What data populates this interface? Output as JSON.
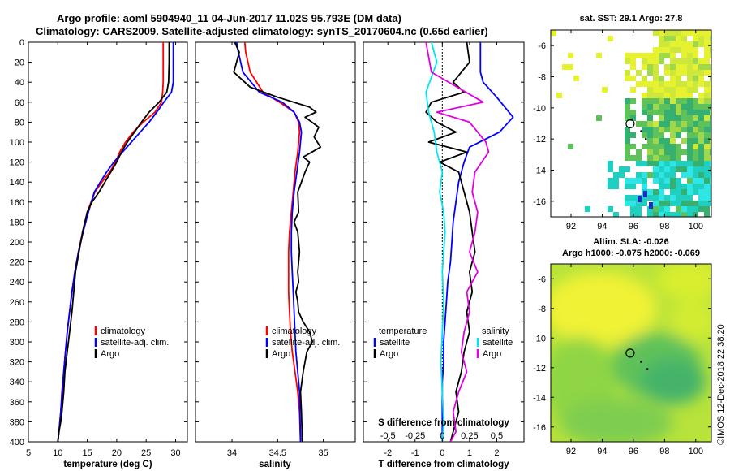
{
  "title": {
    "line1": "Argo profile: aoml 5904940_11 04-Jun-2017 11.02S 95.793E (DM data)",
    "line2": "Climatology: CARS2009. Satellite-adjusted climatology: synTS_20170604.nc (0.65d earlier)"
  },
  "colors": {
    "climatology": "#ff0000",
    "satellite": "#0000ff",
    "argo": "#000000",
    "sat_salinity": "#00e5ee",
    "argo_salinity": "#e000e0"
  },
  "depth_axis": {
    "min": 0,
    "max": 400,
    "ticks": [
      0,
      20,
      40,
      60,
      80,
      100,
      120,
      140,
      160,
      180,
      200,
      220,
      240,
      260,
      280,
      300,
      320,
      340,
      360,
      380,
      400
    ]
  },
  "chart_data": [
    {
      "id": "temperature",
      "type": "line",
      "xlabel": "temperature (deg C)",
      "xlim": [
        5,
        32
      ],
      "xticks": [
        5,
        10,
        15,
        20,
        25,
        30
      ],
      "ylim": [
        0,
        400
      ],
      "legend": {
        "position": "bottom-right",
        "items": [
          "climatology",
          "satellite-adj. clim.",
          "Argo"
        ]
      },
      "series": [
        {
          "name": "climatology",
          "color": "#ff0000",
          "x": [
            27.9,
            27.9,
            27.9,
            27.8,
            27.6,
            26.5,
            24.5,
            22.8,
            21.5,
            20.5,
            19.8,
            18.8,
            17.5,
            16.3,
            15.0,
            14.2,
            13.5,
            12.9,
            12.4,
            12.0,
            11.6,
            11.3,
            11.0,
            10.8,
            10.5,
            10.2,
            10.0
          ],
          "y": [
            0,
            20,
            40,
            50,
            60,
            70,
            80,
            90,
            100,
            110,
            120,
            130,
            140,
            150,
            170,
            190,
            210,
            230,
            250,
            270,
            290,
            310,
            330,
            350,
            370,
            390,
            400
          ]
        },
        {
          "name": "satellite-adj. clim.",
          "color": "#0000ff",
          "x": [
            29.6,
            29.6,
            29.6,
            29.3,
            28.0,
            26.8,
            25.5,
            24.0,
            22.5,
            21.0,
            19.5,
            18.3,
            17.2,
            16.2,
            15.2,
            14.3,
            13.5,
            12.9,
            12.4,
            12.0,
            11.6,
            11.3,
            11.0,
            10.7,
            10.5,
            10.2,
            10.0
          ],
          "y": [
            0,
            20,
            40,
            50,
            60,
            70,
            80,
            90,
            100,
            110,
            120,
            130,
            140,
            150,
            170,
            190,
            210,
            230,
            250,
            270,
            290,
            310,
            330,
            350,
            370,
            390,
            400
          ]
        },
        {
          "name": "Argo",
          "color": "#000000",
          "x": [
            28.9,
            28.9,
            28.8,
            28.5,
            27.2,
            25.5,
            24.2,
            23.0,
            21.8,
            20.8,
            20.0,
            19.0,
            18.0,
            17.0,
            15.8,
            15.0,
            14.2,
            13.6,
            13.0,
            12.7,
            12.4,
            12.0,
            11.6,
            11.2,
            11.0,
            10.7,
            10.5,
            10.2,
            10.0
          ],
          "y": [
            0,
            20,
            40,
            50,
            60,
            70,
            80,
            90,
            100,
            110,
            120,
            130,
            140,
            150,
            160,
            170,
            190,
            210,
            230,
            250,
            270,
            290,
            310,
            330,
            350,
            370,
            380,
            390,
            400
          ]
        }
      ]
    },
    {
      "id": "salinity",
      "type": "line",
      "xlabel": "salinity",
      "xlim": [
        33.6,
        35.35
      ],
      "xticks": [
        34,
        34.5,
        35
      ],
      "ylim": [
        0,
        400
      ],
      "legend": {
        "position": "bottom-right",
        "items": [
          "climatology",
          "satellite-adj. clim.",
          "Argo"
        ]
      },
      "series": [
        {
          "name": "climatology",
          "color": "#ff0000",
          "x": [
            34.14,
            34.15,
            34.2,
            34.34,
            34.52,
            34.68,
            34.73,
            34.74,
            34.72,
            34.69,
            34.67,
            34.65,
            34.63,
            34.62,
            34.62,
            34.62,
            34.63,
            34.64,
            34.66,
            34.69,
            34.72,
            34.74,
            34.75
          ],
          "y": [
            0,
            10,
            30,
            50,
            60,
            70,
            80,
            90,
            110,
            130,
            150,
            170,
            190,
            210,
            230,
            250,
            270,
            290,
            310,
            330,
            350,
            370,
            400
          ]
        },
        {
          "name": "satellite-adj. clim.",
          "color": "#0000ff",
          "x": [
            34.05,
            34.07,
            34.12,
            34.3,
            34.55,
            34.68,
            34.74,
            34.76,
            34.74,
            34.71,
            34.68,
            34.66,
            34.65,
            34.65,
            34.66,
            34.67,
            34.68,
            34.69,
            34.7,
            34.72,
            34.74,
            34.75
          ],
          "y": [
            0,
            10,
            30,
            50,
            60,
            70,
            80,
            90,
            110,
            130,
            150,
            170,
            190,
            210,
            230,
            250,
            270,
            290,
            310,
            330,
            350,
            400
          ]
        },
        {
          "name": "Argo",
          "color": "#000000",
          "x": [
            34.03,
            34.08,
            34.02,
            34.2,
            34.5,
            34.85,
            34.92,
            34.8,
            34.95,
            34.9,
            34.97,
            34.78,
            34.85,
            34.8,
            34.72,
            34.73,
            34.68,
            34.72,
            34.74,
            34.72,
            34.73,
            34.7,
            34.72,
            34.73,
            34.78,
            34.85,
            34.88,
            34.82,
            34.78,
            34.75,
            34.76,
            34.77
          ],
          "y": [
            0,
            10,
            30,
            45,
            55,
            65,
            70,
            75,
            85,
            95,
            105,
            115,
            120,
            130,
            150,
            170,
            180,
            190,
            210,
            230,
            240,
            250,
            260,
            270,
            280,
            290,
            300,
            310,
            330,
            350,
            370,
            400
          ]
        }
      ]
    },
    {
      "id": "difference",
      "type": "line",
      "xlabel": "T difference from climatology",
      "top_axis_label": "S difference from climatology",
      "xlim": [
        -2.9,
        3.0
      ],
      "xticks": [
        -2,
        -1,
        0,
        1,
        2
      ],
      "top_axis_ticks": [
        "-0.5",
        "-0.25",
        "0",
        "0.25",
        "0.5"
      ],
      "top_axis_scale": 4,
      "ylim": [
        0,
        400
      ],
      "legend": {
        "position": "bottom",
        "left_title": "temperature",
        "right_title": "salinity",
        "left_items": [
          "satellite",
          "Argo"
        ],
        "right_items": [
          "satellite",
          "Argo"
        ]
      },
      "series": [
        {
          "name": "temperature satellite",
          "color": "#0000ff",
          "x": [
            1.4,
            1.4,
            1.5,
            2.0,
            2.6,
            2.1,
            1.0,
            0.8,
            0.6,
            0.5,
            0.4,
            0.35,
            0.3,
            0.2,
            0.15,
            0.1,
            0.05,
            0.05,
            0.0,
            0.0,
            0.0
          ],
          "y": [
            0,
            30,
            40,
            55,
            75,
            90,
            105,
            120,
            140,
            160,
            180,
            200,
            220,
            240,
            260,
            280,
            300,
            320,
            340,
            360,
            400
          ]
        },
        {
          "name": "temperature Argo",
          "color": "#000000",
          "x": [
            0.9,
            1.0,
            0.4,
            0.8,
            -0.4,
            -0.6,
            -0.2,
            0.5,
            -0.5,
            0.9,
            -0.1,
            0.6,
            0.8,
            1.0,
            1.1,
            1.2,
            1.0,
            1.1,
            0.9,
            1.0,
            0.8,
            0.7,
            0.5,
            0.6,
            0.4,
            0.3
          ],
          "y": [
            0,
            20,
            40,
            50,
            60,
            70,
            80,
            90,
            100,
            110,
            120,
            130,
            150,
            170,
            190,
            210,
            230,
            250,
            270,
            290,
            310,
            330,
            350,
            370,
            390,
            400
          ]
        },
        {
          "name": "salinity satellite",
          "color": "#00e5ee",
          "x": [
            -0.4,
            -0.2,
            -0.6,
            -0.5,
            -0.3,
            -0.2,
            0.0,
            -0.1,
            0.05,
            0.1,
            0.05,
            0.0,
            0.05,
            0.0,
            -0.05,
            0.0,
            0.05,
            0.0
          ],
          "y": [
            0,
            20,
            50,
            70,
            90,
            110,
            130,
            150,
            170,
            190,
            210,
            230,
            260,
            290,
            320,
            350,
            380,
            400
          ]
        },
        {
          "name": "salinity Argo",
          "color": "#e000e0",
          "x": [
            -0.6,
            -0.4,
            1.5,
            -0.2,
            1.0,
            1.3,
            1.6,
            1.7,
            1.2,
            1.1,
            1.3,
            1.2,
            1.0,
            1.3,
            0.9,
            1.0,
            0.8,
            0.7,
            0.9,
            0.6,
            0.4,
            0.5,
            0.3
          ],
          "y": [
            0,
            30,
            60,
            70,
            80,
            90,
            100,
            110,
            130,
            150,
            170,
            190,
            210,
            230,
            250,
            270,
            290,
            310,
            330,
            350,
            370,
            390,
            400
          ]
        }
      ]
    },
    {
      "id": "sst_map",
      "type": "heatmap",
      "title": "sat. SST: 29.1  Argo: 27.8",
      "xticks": [
        92,
        94,
        96,
        98,
        100
      ],
      "yticks": [
        -6,
        -8,
        -10,
        -12,
        -14,
        -16
      ],
      "xlim": [
        90.7,
        101
      ],
      "ylim": [
        -17,
        -5
      ],
      "profile_position": {
        "lon": 95.793,
        "lat": -11.02
      },
      "track": [
        {
          "lon": 96.5,
          "lat": -11.5
        },
        {
          "lon": 96.8,
          "lat": -12.0
        }
      ]
    },
    {
      "id": "sla_map",
      "type": "heatmap",
      "title": "Altim. SLA: -0.026",
      "subtitle": "Argo h1000: -0.075 h2000: -0.069",
      "xticks": [
        92,
        94,
        96,
        98,
        100
      ],
      "yticks": [
        -6,
        -8,
        -10,
        -12,
        -14,
        -16
      ],
      "xlim": [
        90.7,
        101
      ],
      "ylim": [
        -17,
        -5
      ],
      "profile_position": {
        "lon": 95.793,
        "lat": -11.02
      },
      "track": [
        {
          "lon": 96.5,
          "lat": -11.6
        },
        {
          "lon": 96.9,
          "lat": -12.1
        }
      ]
    }
  ],
  "watermark": "©IMOS 12-Dec-2018 22:38:20"
}
